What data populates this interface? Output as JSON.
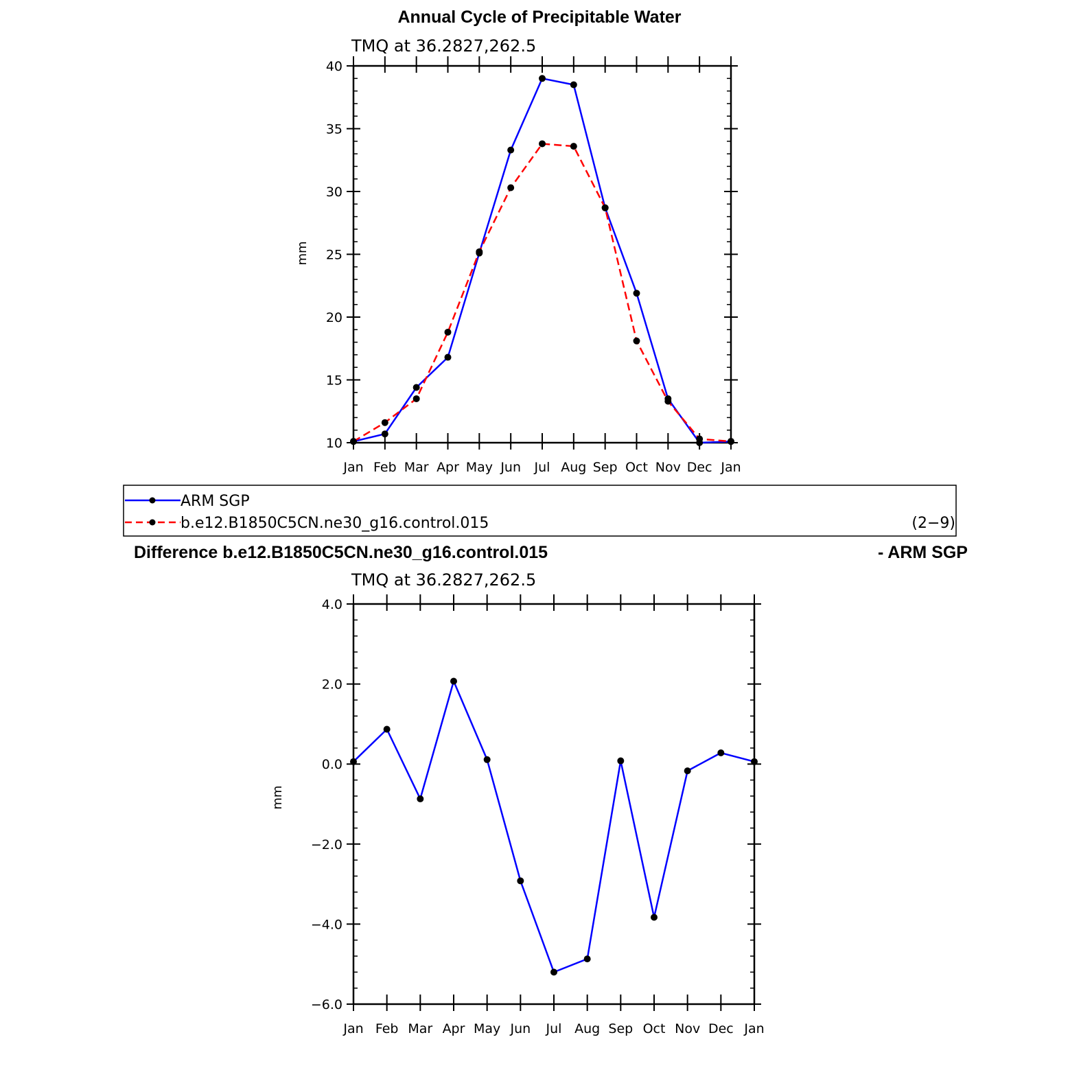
{
  "top": {
    "title": "Annual Cycle of Precipitable Water",
    "subtitle": "TMQ at 36.2827,262.5",
    "ylabel": "mm"
  },
  "legend": {
    "items": [
      {
        "label": "ARM SGP",
        "color": "#0000ff",
        "style": "solid"
      },
      {
        "label": "b.e12.B1850C5CN.ne30_g16.control.015",
        "color": "#ff0000",
        "style": "dashed"
      }
    ],
    "note": "(2−9)"
  },
  "bottom": {
    "title_left": "Difference b.e12.B1850C5CN.ne30_g16.control.015",
    "title_right": "- ARM SGP",
    "subtitle": "TMQ at 36.2827,262.5",
    "ylabel": "mm"
  },
  "chart_data": [
    {
      "type": "line",
      "title": "Annual Cycle of Precipitable Water",
      "subtitle": "TMQ at 36.2827,262.5",
      "ylabel": "mm",
      "categories": [
        "Jan",
        "Feb",
        "Mar",
        "Apr",
        "May",
        "Jun",
        "Jul",
        "Aug",
        "Sep",
        "Oct",
        "Nov",
        "Dec",
        "Jan"
      ],
      "ylim": [
        10,
        40
      ],
      "yticks": [
        "10",
        "15",
        "20",
        "25",
        "30",
        "35",
        "40"
      ],
      "series": [
        {
          "name": "ARM SGP",
          "color": "#0000ff",
          "style": "solid",
          "values": [
            10.1,
            10.7,
            14.4,
            16.8,
            25.1,
            33.3,
            39.0,
            38.5,
            28.7,
            21.9,
            13.5,
            10.0,
            10.1
          ]
        },
        {
          "name": "b.e12.B1850C5CN.ne30_g16.control.015",
          "color": "#ff0000",
          "style": "dashed",
          "values": [
            10.1,
            11.6,
            13.5,
            18.8,
            25.2,
            30.3,
            33.8,
            33.6,
            28.7,
            18.1,
            13.3,
            10.3,
            10.1
          ]
        }
      ]
    },
    {
      "type": "line",
      "title": "Difference b.e12.B1850C5CN.ne30_g16.control.015 - ARM SGP",
      "subtitle": "TMQ at 36.2827,262.5",
      "ylabel": "mm",
      "categories": [
        "Jan",
        "Feb",
        "Mar",
        "Apr",
        "May",
        "Jun",
        "Jul",
        "Aug",
        "Sep",
        "Oct",
        "Nov",
        "Dec",
        "Jan"
      ],
      "ylim": [
        -6,
        4
      ],
      "yticks": [
        "−6.0",
        "−4.0",
        "−2.0",
        "0.0",
        "2.0",
        "4.0"
      ],
      "series": [
        {
          "name": "",
          "color": "#0000ff",
          "style": "solid",
          "values": [
            0.06,
            0.87,
            -0.87,
            2.07,
            0.11,
            -2.92,
            -5.2,
            -4.87,
            0.08,
            -3.83,
            -0.17,
            0.28,
            0.06
          ]
        }
      ]
    }
  ]
}
